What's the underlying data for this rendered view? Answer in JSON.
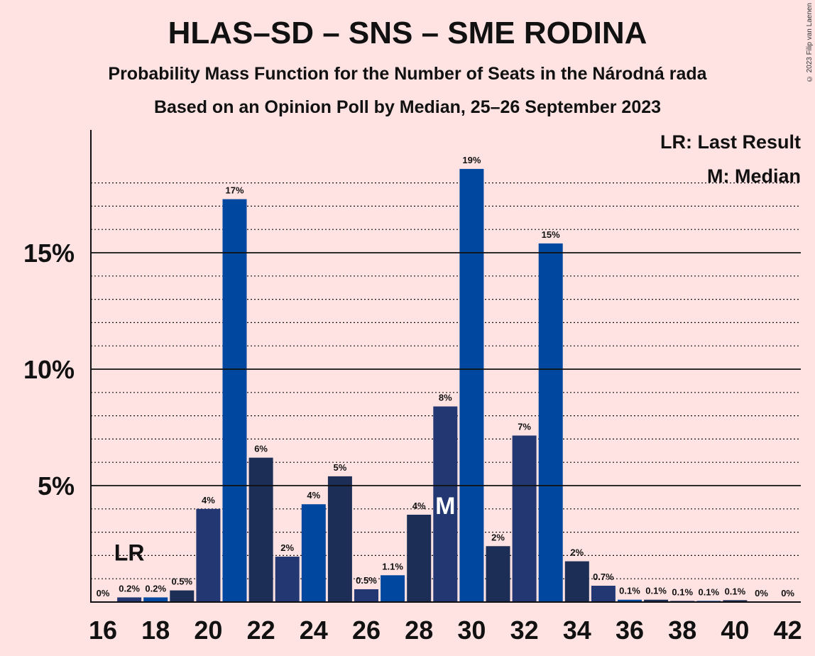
{
  "header": {
    "title": "HLAS–SD – SNS – SME RODINA",
    "subtitle": "Probability Mass Function for the Number of Seats in the Národná rada",
    "subtitle2": "Based on an Opinion Poll by Median, 25–26 September 2023",
    "copyright": "© 2023 Filip van Laenen"
  },
  "legend": {
    "lr": "LR: Last Result",
    "m": "M: Median"
  },
  "chart_data": {
    "type": "bar",
    "x": [
      16,
      17,
      18,
      19,
      20,
      21,
      22,
      23,
      24,
      25,
      26,
      27,
      28,
      29,
      30,
      31,
      32,
      33,
      34,
      35,
      36,
      37,
      38,
      39,
      40,
      41,
      42
    ],
    "values": [
      0,
      0.2,
      0.2,
      0.5,
      4.0,
      17.3,
      6.2,
      1.95,
      4.2,
      5.4,
      0.55,
      1.15,
      3.75,
      8.4,
      18.6,
      2.4,
      7.15,
      15.4,
      1.75,
      0.7,
      0.1,
      0.1,
      0.05,
      0.05,
      0.08,
      0,
      0
    ],
    "labels": [
      "0%",
      "0.2%",
      "0.2%",
      "0.5%",
      "4%",
      "17%",
      "6%",
      "2%",
      "4%",
      "5%",
      "0.5%",
      "1.1%",
      "4%",
      "8%",
      "19%",
      "2%",
      "7%",
      "15%",
      "2%",
      "0.7%",
      "0.1%",
      "0.1%",
      "0.1%",
      "0.1%",
      "0.1%",
      "0%",
      "0%"
    ],
    "x_tick_labels": [
      "16",
      "18",
      "20",
      "22",
      "24",
      "26",
      "28",
      "30",
      "32",
      "34",
      "36",
      "38",
      "40",
      "42"
    ],
    "y_ticks": [
      5,
      10,
      15
    ],
    "y_tick_labels": [
      "5%",
      "10%",
      "15%"
    ],
    "ylim": [
      0,
      20.5
    ],
    "minor_gridlines_step": 1,
    "last_result_seat": 17,
    "last_result_label": "LR",
    "median_seat": 29,
    "median_label": "M",
    "colors": [
      "#1C2E55",
      "#233873",
      "#0047A0"
    ],
    "background": "#FFE3E3"
  }
}
